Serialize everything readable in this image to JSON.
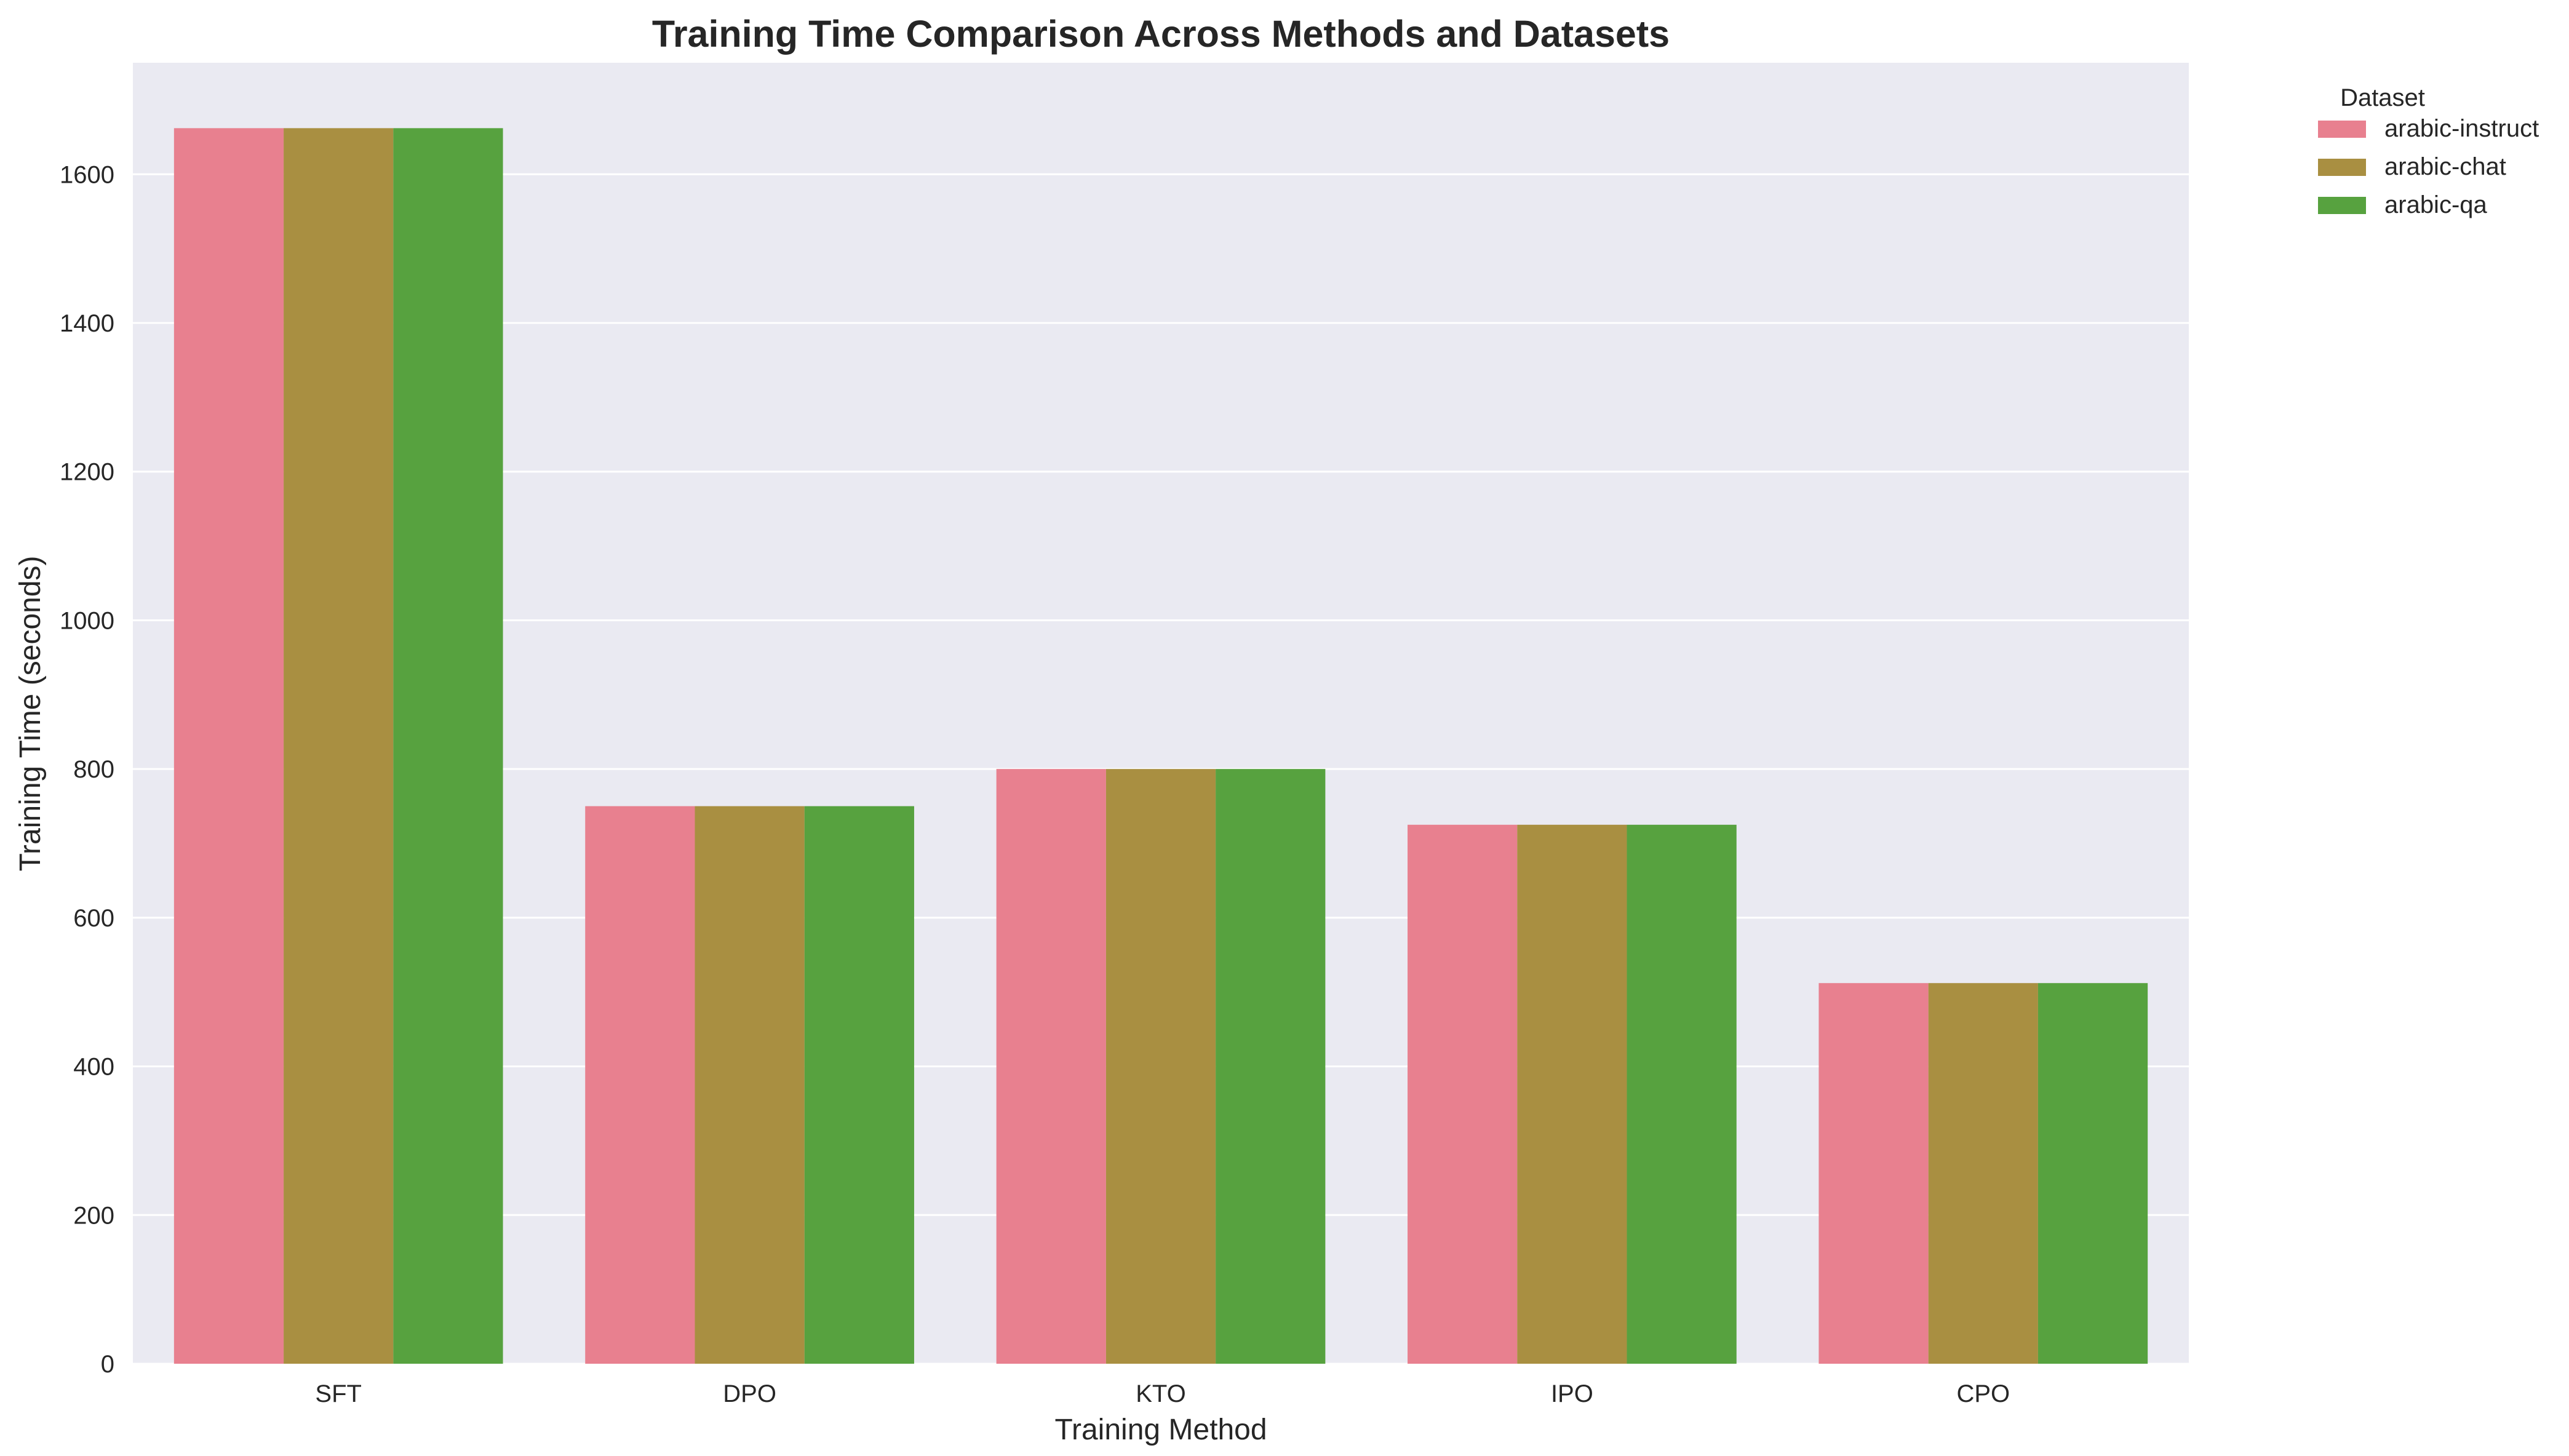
{
  "chart_data": {
    "type": "bar",
    "title": "Training Time Comparison Across Methods and Datasets",
    "xlabel": "Training Method",
    "ylabel": "Training Time (seconds)",
    "categories": [
      "SFT",
      "DPO",
      "KTO",
      "IPO",
      "CPO"
    ],
    "ylim": [
      0,
      1750
    ],
    "yticks": [
      0,
      200,
      400,
      600,
      800,
      1000,
      1200,
      1400,
      1600
    ],
    "grid": true,
    "legend": {
      "title": "Dataset",
      "position": "outside-top-right"
    },
    "series": [
      {
        "name": "arabic-instruct",
        "color": "#e8808f",
        "values": [
          1662,
          750,
          800,
          725,
          512
        ]
      },
      {
        "name": "arabic-chat",
        "color": "#a98f41",
        "values": [
          1662,
          750,
          800,
          725,
          512
        ]
      },
      {
        "name": "arabic-qa",
        "color": "#57a23f",
        "values": [
          1662,
          750,
          800,
          725,
          512
        ]
      }
    ],
    "background": "#eaeaf2",
    "gridColor": "#ffffff"
  }
}
